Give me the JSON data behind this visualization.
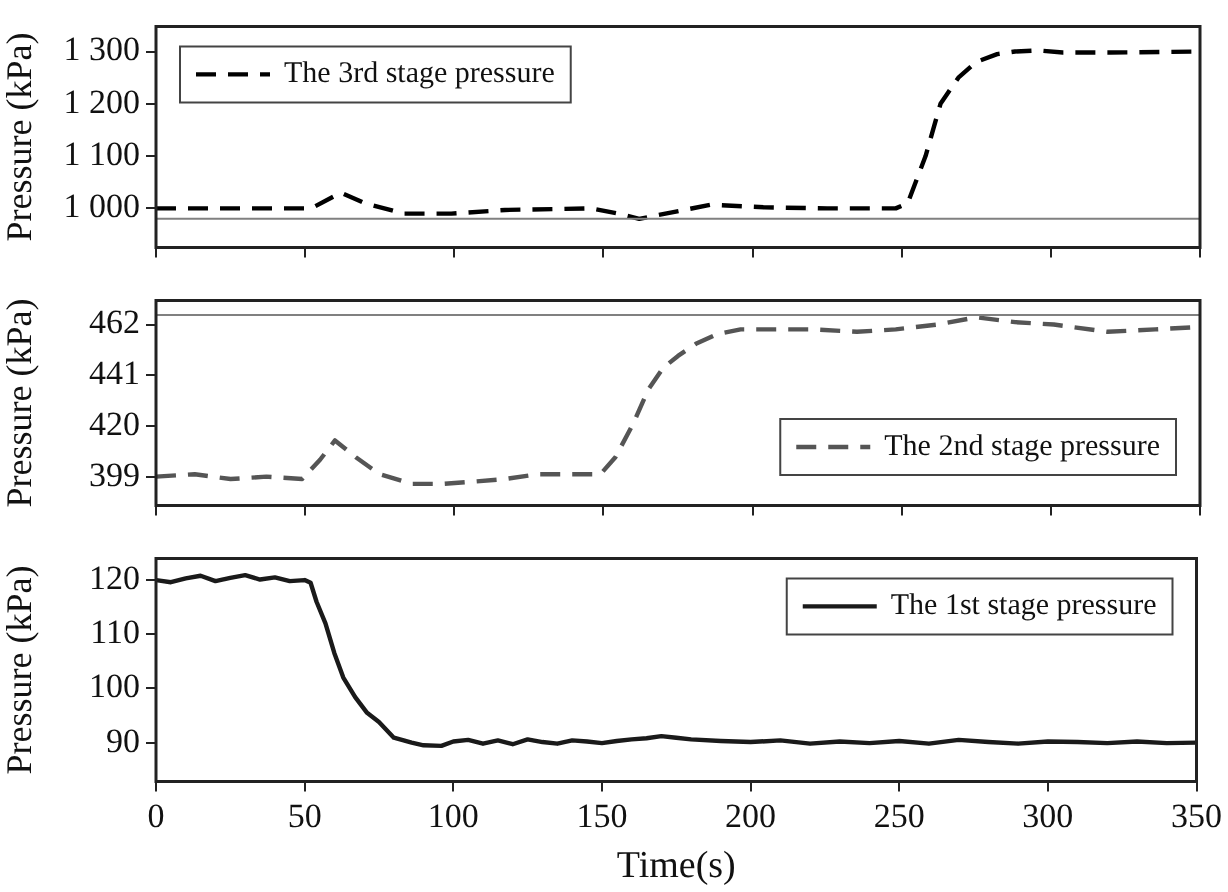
{
  "chart_data": [
    {
      "type": "line",
      "ylabel": "Pressure (kPa)",
      "xlim": [
        0,
        350
      ],
      "xticks": [
        0,
        50,
        100,
        150,
        200,
        250,
        300,
        350
      ],
      "ylim": [
        925,
        1348
      ],
      "yticks": [
        {
          "value": 1000,
          "label": "1 000"
        },
        {
          "value": 1100,
          "label": "1 100"
        },
        {
          "value": 1200,
          "label": "1 200"
        },
        {
          "value": 1300,
          "label": "1 300"
        }
      ],
      "tick_labels": "y",
      "legend": "top left",
      "grid": false,
      "ref_lines": [
        {
          "axis": "y",
          "value": 980,
          "color": "#808080"
        }
      ],
      "series": [
        {
          "name": "The 3rd stage pressure",
          "color": "#000000",
          "line_style": "dashed",
          "x": [
            0,
            25,
            52,
            62,
            70,
            83,
            99,
            117,
            146,
            155,
            162,
            186,
            204,
            225,
            248,
            252,
            258,
            263,
            269,
            275,
            282,
            288,
            296,
            304,
            320,
            350
          ],
          "values": [
            1000,
            1000,
            1000,
            1030,
            1010,
            990,
            990,
            997,
            1000,
            990,
            980,
            1007,
            1002,
            1000,
            1000,
            1010,
            1100,
            1200,
            1250,
            1280,
            1295,
            1300,
            1302,
            1298,
            1298,
            1300
          ]
        }
      ]
    },
    {
      "type": "line",
      "ylabel": "Pressure (kPa)",
      "xlim": [
        0,
        350
      ],
      "xticks": [
        0,
        50,
        100,
        150,
        200,
        250,
        300,
        350
      ],
      "ylim": [
        387,
        472
      ],
      "yticks": [
        399,
        420,
        441,
        462
      ],
      "tick_labels": "y",
      "legend": "right",
      "grid": false,
      "ref_lines": [
        {
          "axis": "y",
          "value": 466,
          "color": "#808080"
        }
      ],
      "series": [
        {
          "name": "The 2nd stage pressure",
          "color": "#555555",
          "line_style": "dashed",
          "x": [
            0,
            13,
            25,
            37,
            49,
            55,
            60,
            67,
            75,
            86,
            96,
            107,
            117,
            128,
            139,
            149,
            154,
            160,
            165,
            170,
            175,
            181,
            188,
            196,
            204,
            220,
            235,
            248,
            262,
            275,
            288,
            301,
            319,
            335,
            350
          ],
          "values": [
            399,
            400,
            398,
            399,
            398,
            406,
            414,
            407,
            400,
            396,
            396,
            397,
            398,
            400,
            400,
            400,
            407,
            421,
            435,
            444,
            449,
            454,
            458,
            460,
            460,
            460,
            459,
            460,
            462,
            465,
            463,
            462,
            459,
            460,
            461
          ]
        }
      ]
    },
    {
      "type": "line",
      "xlabel": "Time(s)",
      "ylabel": "Pressure (kPa)",
      "xlim": [
        0,
        350
      ],
      "xticks": [
        0,
        50,
        100,
        150,
        200,
        250,
        300,
        350
      ],
      "ylim": [
        82.8,
        124
      ],
      "yticks": [
        90,
        100,
        110,
        120
      ],
      "legend": "top right",
      "grid": false,
      "series": [
        {
          "name": "The 1st stage pressure",
          "color": "#1a1a1a",
          "line_style": "solid",
          "x": [
            0,
            5,
            10,
            15,
            20,
            25,
            30,
            35,
            40,
            45,
            50,
            52,
            54,
            57,
            60,
            63,
            67,
            71,
            75,
            80,
            86,
            90,
            96,
            100,
            105,
            110,
            115,
            120,
            125,
            130,
            135,
            140,
            145,
            150,
            155,
            160,
            165,
            170,
            175,
            180,
            190,
            200,
            210,
            220,
            230,
            240,
            250,
            260,
            270,
            280,
            290,
            300,
            310,
            320,
            330,
            340,
            350
          ],
          "values": [
            120,
            119.6,
            120.3,
            120.8,
            119.8,
            120.4,
            120.9,
            120.1,
            120.5,
            119.8,
            120,
            119.5,
            116,
            112,
            106.5,
            102,
            98.4,
            95.5,
            93.8,
            90.9,
            90,
            89.5,
            89.4,
            90.2,
            90.5,
            89.8,
            90.4,
            89.7,
            90.6,
            90.1,
            89.8,
            90.4,
            90.2,
            89.9,
            90.3,
            90.6,
            90.8,
            91.2,
            90.9,
            90.6,
            90.3,
            90.1,
            90.4,
            89.8,
            90.2,
            89.9,
            90.3,
            89.8,
            90.5,
            90.1,
            89.8,
            90.2,
            90.1,
            89.9,
            90.2,
            89.9,
            90
          ]
        }
      ]
    }
  ]
}
